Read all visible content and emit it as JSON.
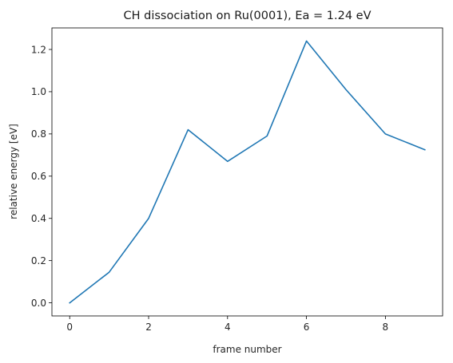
{
  "chart_data": {
    "type": "line",
    "title": "CH dissociation on Ru(0001), Ea = 1.24 eV",
    "xlabel": "frame number",
    "ylabel": "relative energy [eV]",
    "x": [
      0,
      1,
      2,
      3,
      4,
      5,
      6,
      7,
      8,
      9
    ],
    "series": [
      {
        "values": [
          0.0,
          0.145,
          0.4,
          0.82,
          0.67,
          0.79,
          1.24,
          1.01,
          0.8,
          0.725
        ],
        "color": "#1f77b4"
      }
    ],
    "xlim": [
      -0.45,
      9.45
    ],
    "ylim": [
      -0.062,
      1.302
    ],
    "xticks": [
      0,
      2,
      4,
      6,
      8
    ],
    "xtick_labels": [
      "0",
      "2",
      "4",
      "6",
      "8"
    ],
    "yticks": [
      0.0,
      0.2,
      0.4,
      0.6,
      0.8,
      1.0,
      1.2
    ],
    "ytick_labels": [
      "0.0",
      "0.2",
      "0.4",
      "0.6",
      "0.8",
      "1.0",
      "1.2"
    ],
    "grid": false,
    "legend": "none"
  }
}
